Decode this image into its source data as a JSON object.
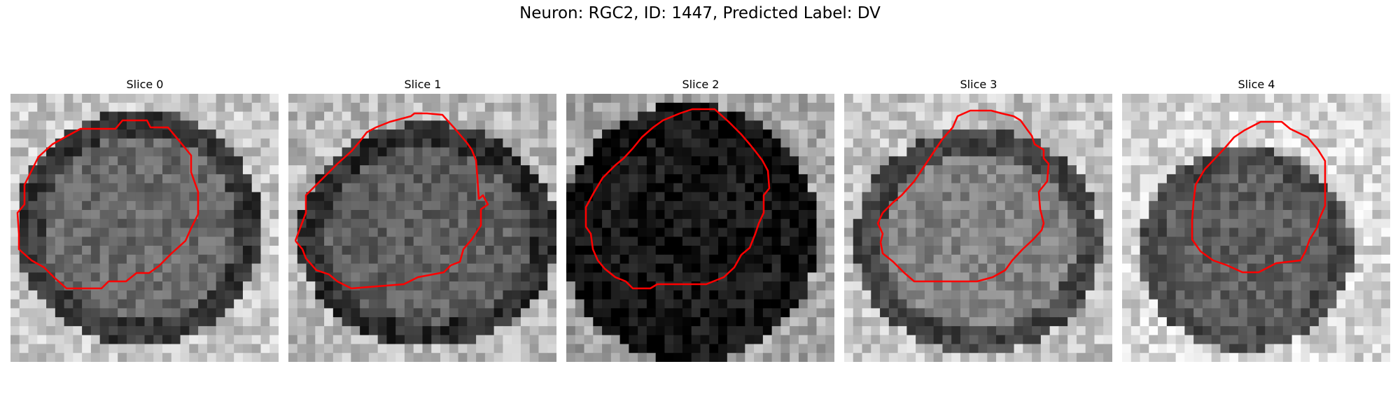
{
  "figure": {
    "title": "Neuron: RGC2, ID: 1447, Predicted Label: DV"
  },
  "panels": [
    {
      "title": "Slice 0"
    },
    {
      "title": "Slice 1"
    },
    {
      "title": "Slice 2"
    },
    {
      "title": "Slice 3"
    },
    {
      "title": "Slice 4"
    }
  ],
  "colors": {
    "contour": "#ff0000",
    "background": "#ffffff"
  }
}
